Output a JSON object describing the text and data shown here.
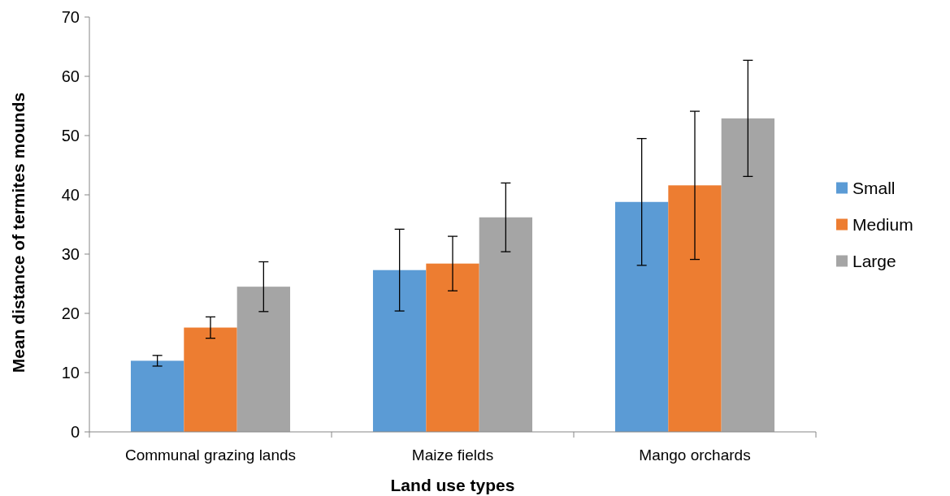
{
  "chart_data": {
    "type": "bar",
    "xlabel": "Land use types",
    "ylabel": "Mean distance of termites mounds",
    "categories": [
      "Communal grazing lands",
      "Maize fields",
      "Mango orchards"
    ],
    "series": [
      {
        "name": "Small",
        "color": "#5b9bd5",
        "values": [
          12.0,
          27.3,
          38.8
        ],
        "errors": [
          0.9,
          6.9,
          10.7
        ]
      },
      {
        "name": "Medium",
        "color": "#ed7d31",
        "values": [
          17.6,
          28.4,
          41.6
        ],
        "errors": [
          1.8,
          4.6,
          12.5
        ]
      },
      {
        "name": "Large",
        "color": "#a5a5a5",
        "values": [
          24.5,
          36.2,
          52.9
        ],
        "errors": [
          4.2,
          5.8,
          9.8
        ]
      }
    ],
    "ylim": [
      0,
      70
    ],
    "yticks": [
      0,
      10,
      20,
      30,
      40,
      50,
      60,
      70
    ],
    "grid": false,
    "legend": "right"
  }
}
